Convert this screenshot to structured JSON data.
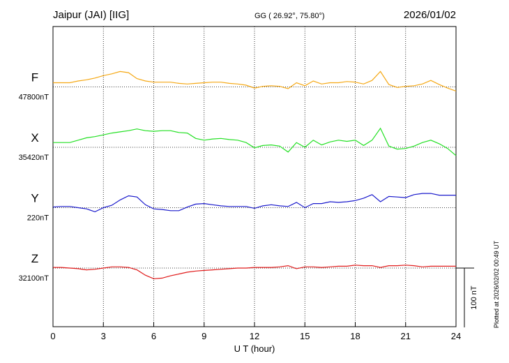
{
  "chart_data": {
    "type": "line",
    "title": "Jaipur (JAI)  [IIG]",
    "subtitle": "GG ( 26.92°,  75.80°)",
    "date": "2026/01/02",
    "x_label": "U T (hour)",
    "footnote": "Plotted at 2026/02/02 00:49 UT",
    "scale_bar": {
      "value": 100,
      "label": "100 nT"
    },
    "xlim": [
      0,
      24
    ],
    "xticks": [
      0,
      3,
      6,
      9,
      12,
      15,
      18,
      21,
      24
    ],
    "grid": true,
    "x": [
      0,
      0.5,
      1,
      1.5,
      2,
      2.5,
      3,
      3.5,
      4,
      4.5,
      5,
      5.5,
      6,
      6.5,
      7,
      7.5,
      8,
      8.5,
      9,
      9.5,
      10,
      10.5,
      11,
      11.5,
      12,
      12.5,
      13,
      13.5,
      14,
      14.5,
      15,
      15.5,
      16,
      16.5,
      17,
      17.5,
      18,
      18.5,
      19,
      19.5,
      20,
      20.5,
      21,
      21.5,
      22,
      22.5,
      23,
      23.5,
      24
    ],
    "series": [
      {
        "name": "F",
        "color": "#f5a814",
        "baseline": {
          "value": 47800,
          "label": "47800nT"
        },
        "values": [
          47807,
          47807,
          47807,
          47810,
          47812,
          47815,
          47819,
          47822,
          47826,
          47824,
          47814,
          47810,
          47808,
          47808,
          47808,
          47806,
          47805,
          47806,
          47807,
          47808,
          47808,
          47806,
          47805,
          47803,
          47798,
          47801,
          47802,
          47801,
          47797,
          47807,
          47802,
          47810,
          47805,
          47807,
          47807,
          47809,
          47808,
          47805,
          47811,
          47826,
          47804,
          47799,
          47801,
          47802,
          47805,
          47811,
          47804,
          47798,
          47793
        ]
      },
      {
        "name": "X",
        "color": "#22e022",
        "baseline": {
          "value": 35420,
          "label": "35420nT"
        },
        "values": [
          35428,
          35428,
          35428,
          35432,
          35436,
          35438,
          35441,
          35444,
          35446,
          35448,
          35451,
          35448,
          35447,
          35448,
          35448,
          35445,
          35444,
          35435,
          35432,
          35434,
          35435,
          35433,
          35432,
          35428,
          35419,
          35423,
          35424,
          35422,
          35412,
          35428,
          35420,
          35432,
          35424,
          35429,
          35432,
          35430,
          35432,
          35423,
          35432,
          35452,
          35422,
          35417,
          35418,
          35422,
          35428,
          35432,
          35426,
          35418,
          35406
        ]
      },
      {
        "name": "Y",
        "color": "#1a1acc",
        "baseline": {
          "value": 220,
          "label": "220nT"
        },
        "values": [
          221,
          222,
          222,
          220,
          218,
          213,
          220,
          224,
          233,
          240,
          238,
          225,
          218,
          217,
          215,
          215,
          221,
          226,
          227,
          225,
          223,
          222,
          222,
          222,
          219,
          223,
          225,
          223,
          222,
          229,
          220,
          227,
          227,
          230,
          229,
          230,
          232,
          236,
          242,
          230,
          239,
          238,
          237,
          242,
          244,
          244,
          241,
          241,
          241
        ]
      },
      {
        "name": "Z",
        "color": "#e01a1a",
        "baseline": {
          "value": 32100,
          "label": "32100nT"
        },
        "values": [
          32101,
          32101,
          32100,
          32099,
          32097,
          32098,
          32100,
          32102,
          32102,
          32101,
          32097,
          32088,
          32082,
          32083,
          32087,
          32090,
          32093,
          32095,
          32096,
          32097,
          32098,
          32099,
          32100,
          32100,
          32101,
          32101,
          32101,
          32102,
          32104,
          32099,
          32102,
          32102,
          32101,
          32102,
          32103,
          32103,
          32105,
          32104,
          32104,
          32101,
          32104,
          32104,
          32105,
          32104,
          32102,
          32103,
          32103,
          32103,
          32103
        ]
      }
    ]
  }
}
